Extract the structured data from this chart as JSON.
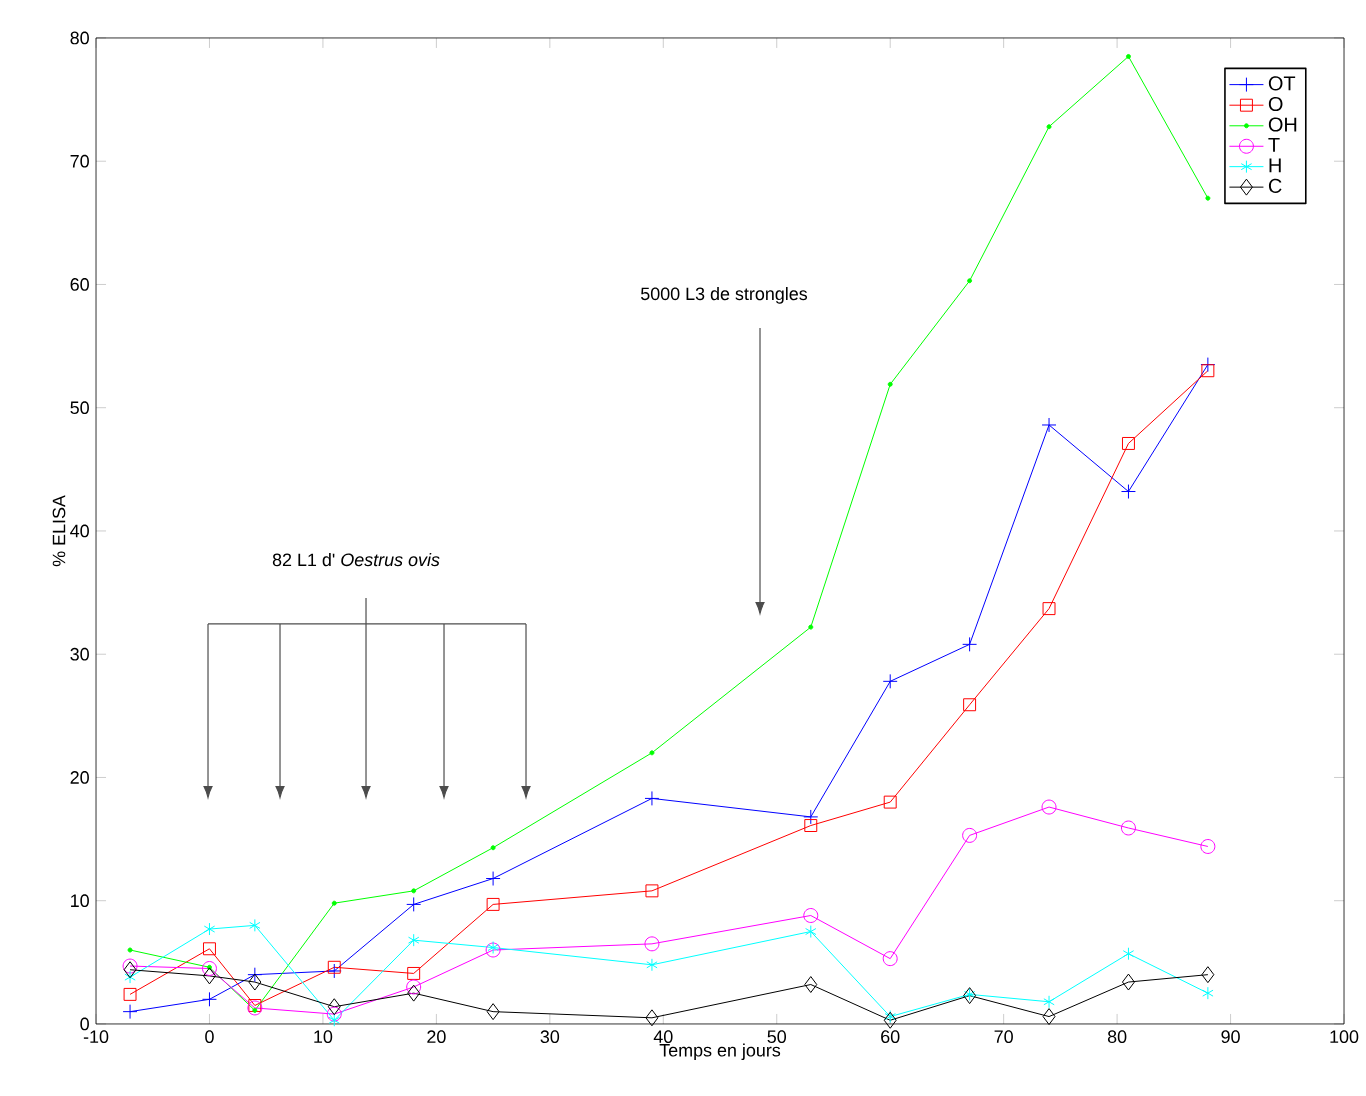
{
  "chart_data": {
    "type": "line",
    "xlabel": "Temps en jours",
    "ylabel": "% ELISA",
    "x": [
      -7,
      0,
      4,
      11,
      18,
      25,
      39,
      53,
      60,
      67,
      74,
      81,
      88
    ],
    "series": [
      {
        "name": "OT",
        "color": "#0000ff",
        "marker": "cross",
        "values": [
          1.0,
          2.0,
          4.0,
          4.3,
          9.7,
          11.8,
          18.3,
          16.8,
          27.8,
          30.8,
          48.6,
          43.2,
          53.5
        ]
      },
      {
        "name": "O",
        "color": "#ff0000",
        "marker": "square",
        "values": [
          2.4,
          6.1,
          1.5,
          4.6,
          4.1,
          9.7,
          10.8,
          16.1,
          18.0,
          25.9,
          33.7,
          47.1,
          53.0
        ]
      },
      {
        "name": "OH",
        "color": "#00ff00",
        "marker": "dot",
        "values": [
          6.0,
          4.6,
          1.1,
          9.8,
          10.8,
          14.3,
          22.0,
          32.2,
          51.9,
          60.3,
          72.8,
          78.5,
          67.0
        ]
      },
      {
        "name": "T",
        "color": "#ff00ff",
        "marker": "circle",
        "values": [
          4.7,
          4.5,
          1.3,
          0.8,
          3.0,
          6.0,
          6.5,
          8.8,
          5.3,
          15.3,
          17.6,
          15.9,
          14.4
        ]
      },
      {
        "name": "H",
        "color": "#00ffff",
        "marker": "cross",
        "values": [
          3.8,
          7.7,
          8.0,
          0.3,
          6.8,
          6.2,
          4.8,
          7.5,
          0.6,
          2.4,
          1.8,
          5.7,
          2.5
        ]
      },
      {
        "name": "C",
        "color": "#000000",
        "marker": "diamond",
        "values": [
          4.4,
          3.9,
          3.4,
          1.4,
          2.5,
          1.0,
          0.5,
          3.2,
          0.3,
          2.3,
          0.6,
          3.4,
          4.0
        ]
      }
    ],
    "xlim": [
      -10,
      100
    ],
    "ylim": [
      0,
      80
    ],
    "xticks": [
      -10,
      0,
      10,
      20,
      30,
      40,
      50,
      60,
      70,
      80,
      90,
      100
    ],
    "yticks": [
      0,
      10,
      20,
      30,
      40,
      50,
      60,
      70,
      80
    ],
    "grid": false,
    "legend": "top right",
    "line_style": "solid",
    "annotations": [
      "5000 L3 de strongles",
      "82 L1 d' *Oestrus ovis*"
    ]
  }
}
